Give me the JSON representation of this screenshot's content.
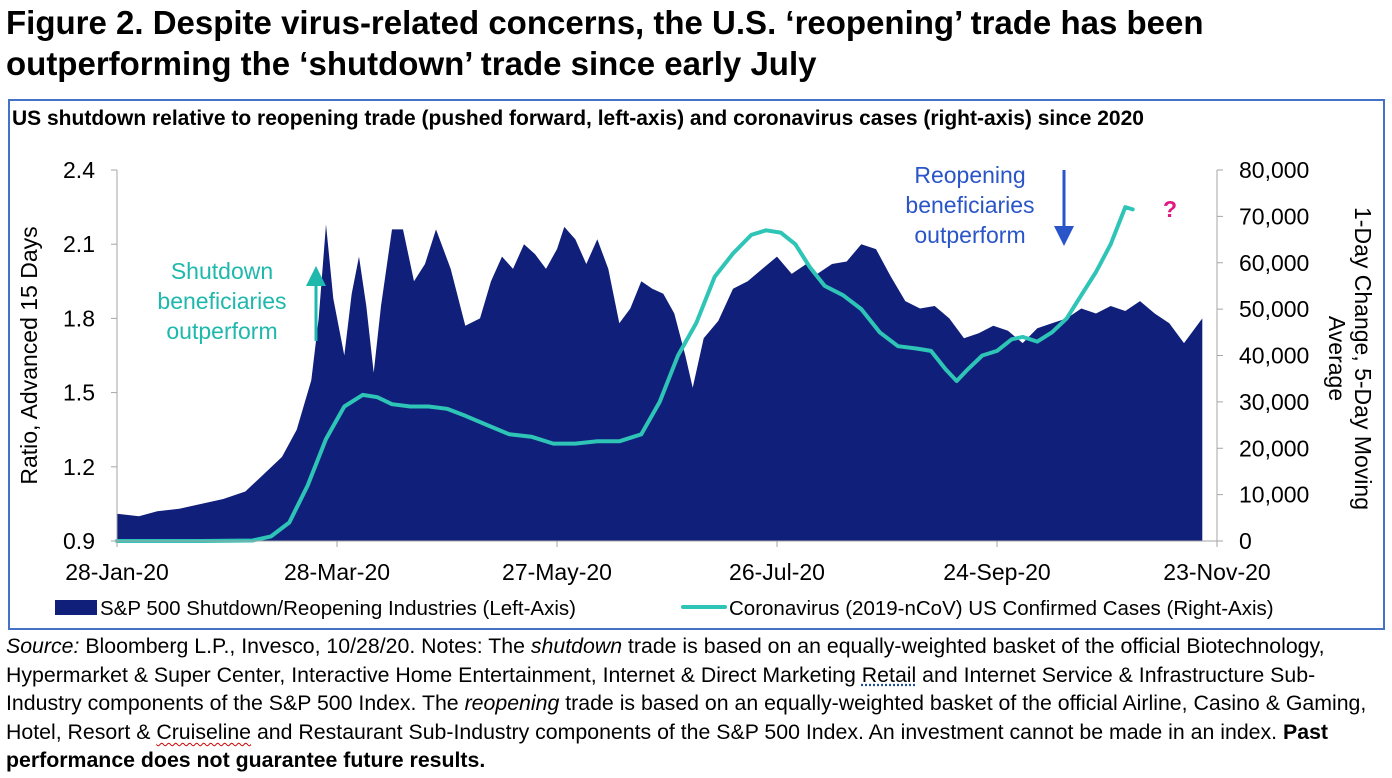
{
  "figure": {
    "title": "Figure 2. Despite virus-related concerns, the U.S. ‘reopening’ trade has been outperforming the ‘shutdown’ trade since early July"
  },
  "source_note": {
    "source_label": "Source:",
    "seg1": " Bloomberg L.P., Invesco, 10/28/20. Notes: The ",
    "shutdown_word": "shutdown",
    "seg2": " trade is based on an equally-weighted basket of the official Biotechnology, Hypermarket & Super Center, Interactive Home Entertainment, Internet & Direct Marketing ",
    "retail_word": "Retail",
    "seg3": " and Internet Service & Infrastructure Sub-Industry components of the S&P 500 Index. The ",
    "reopening_word": "reopening",
    "seg4": " trade is based on an equally-weighted basket of the official Airline, Casino & Gaming, Hotel, Resort & ",
    "cruiseline_word": "Cruiseline",
    "seg5": " and Restaurant Sub-Industry components of the S&P 500 Index. An investment cannot be made in an index. ",
    "disclaimer": "Past performance does not guarantee future results."
  },
  "colors": {
    "area": "#0f1f7a",
    "line": "#2ec4b6",
    "frame": "#4472c4",
    "reopen_text": "#2a55c8",
    "reopen_arrow": "#2a55c8",
    "shutdown_text": "#1fb8ad",
    "question": "#e0187f",
    "axis": "#a6a6a6"
  },
  "chart_data": {
    "type": "area",
    "title": "US shutdown relative to reopening trade (pushed forward, left-axis) and coronavirus cases (right-axis) since 2020",
    "ylabel_left": "Ratio, Advanced 15 Days",
    "ylabel_right": "1-Day Change, 5-Day Moving Average",
    "x_range": [
      "2020-01-28",
      "2020-11-23"
    ],
    "x_ticks": [
      "28-Jan-20",
      "28-Mar-20",
      "27-May-20",
      "26-Jul-20",
      "24-Sep-20",
      "23-Nov-20"
    ],
    "y_left": {
      "range": [
        0.9,
        2.4
      ],
      "ticks": [
        "0.9",
        "1.2",
        "1.5",
        "1.8",
        "2.1",
        "2.4"
      ]
    },
    "y_right": {
      "range": [
        0,
        80000
      ],
      "ticks": [
        "0",
        "10,000",
        "20,000",
        "30,000",
        "40,000",
        "50,000",
        "60,000",
        "70,000",
        "80,000"
      ]
    },
    "legend": {
      "placement": "bottom"
    },
    "grid": false,
    "series": [
      {
        "name": "S&P 500 Shutdown/Reopening Industries (Left-Axis)",
        "type": "area",
        "axis": "left",
        "points": [
          [
            "2020-01-28",
            1.01
          ],
          [
            "2020-02-03",
            1.0
          ],
          [
            "2020-02-08",
            1.02
          ],
          [
            "2020-02-14",
            1.03
          ],
          [
            "2020-02-20",
            1.05
          ],
          [
            "2020-02-26",
            1.07
          ],
          [
            "2020-03-03",
            1.1
          ],
          [
            "2020-03-08",
            1.17
          ],
          [
            "2020-03-13",
            1.24
          ],
          [
            "2020-03-17",
            1.35
          ],
          [
            "2020-03-21",
            1.55
          ],
          [
            "2020-03-23",
            1.8
          ],
          [
            "2020-03-25",
            2.18
          ],
          [
            "2020-03-27",
            1.88
          ],
          [
            "2020-03-30",
            1.65
          ],
          [
            "2020-04-01",
            1.9
          ],
          [
            "2020-04-03",
            2.05
          ],
          [
            "2020-04-05",
            1.85
          ],
          [
            "2020-04-07",
            1.58
          ],
          [
            "2020-04-09",
            1.85
          ],
          [
            "2020-04-12",
            2.16
          ],
          [
            "2020-04-15",
            2.16
          ],
          [
            "2020-04-18",
            1.95
          ],
          [
            "2020-04-21",
            2.02
          ],
          [
            "2020-04-24",
            2.16
          ],
          [
            "2020-04-28",
            2.0
          ],
          [
            "2020-05-02",
            1.77
          ],
          [
            "2020-05-06",
            1.8
          ],
          [
            "2020-05-09",
            1.95
          ],
          [
            "2020-05-12",
            2.05
          ],
          [
            "2020-05-15",
            2.0
          ],
          [
            "2020-05-18",
            2.1
          ],
          [
            "2020-05-21",
            2.06
          ],
          [
            "2020-05-24",
            2.0
          ],
          [
            "2020-05-27",
            2.08
          ],
          [
            "2020-05-29",
            2.17
          ],
          [
            "2020-06-01",
            2.12
          ],
          [
            "2020-06-04",
            2.02
          ],
          [
            "2020-06-07",
            2.12
          ],
          [
            "2020-06-10",
            2.0
          ],
          [
            "2020-06-13",
            1.78
          ],
          [
            "2020-06-16",
            1.84
          ],
          [
            "2020-06-19",
            1.95
          ],
          [
            "2020-06-22",
            1.92
          ],
          [
            "2020-06-25",
            1.9
          ],
          [
            "2020-06-28",
            1.82
          ],
          [
            "2020-07-01",
            1.65
          ],
          [
            "2020-07-03",
            1.52
          ],
          [
            "2020-07-06",
            1.72
          ],
          [
            "2020-07-10",
            1.79
          ],
          [
            "2020-07-14",
            1.92
          ],
          [
            "2020-07-18",
            1.95
          ],
          [
            "2020-07-22",
            2.0
          ],
          [
            "2020-07-26",
            2.05
          ],
          [
            "2020-07-30",
            1.98
          ],
          [
            "2020-08-03",
            2.02
          ],
          [
            "2020-08-06",
            1.98
          ],
          [
            "2020-08-10",
            2.02
          ],
          [
            "2020-08-14",
            2.03
          ],
          [
            "2020-08-18",
            2.1
          ],
          [
            "2020-08-22",
            2.08
          ],
          [
            "2020-08-26",
            1.97
          ],
          [
            "2020-08-30",
            1.87
          ],
          [
            "2020-09-03",
            1.84
          ],
          [
            "2020-09-07",
            1.85
          ],
          [
            "2020-09-11",
            1.8
          ],
          [
            "2020-09-15",
            1.72
          ],
          [
            "2020-09-19",
            1.74
          ],
          [
            "2020-09-23",
            1.77
          ],
          [
            "2020-09-27",
            1.75
          ],
          [
            "2020-10-01",
            1.7
          ],
          [
            "2020-10-05",
            1.76
          ],
          [
            "2020-10-09",
            1.78
          ],
          [
            "2020-10-13",
            1.8
          ],
          [
            "2020-10-17",
            1.84
          ],
          [
            "2020-10-21",
            1.82
          ],
          [
            "2020-10-25",
            1.85
          ],
          [
            "2020-10-29",
            1.83
          ],
          [
            "2020-11-02",
            1.87
          ],
          [
            "2020-11-06",
            1.82
          ],
          [
            "2020-11-10",
            1.78
          ],
          [
            "2020-11-14",
            1.7
          ],
          [
            "2020-11-19",
            1.8
          ]
        ]
      },
      {
        "name": "Coronavirus (2019-nCoV) US Confirmed Cases (Right-Axis)",
        "type": "line",
        "axis": "right",
        "points": [
          [
            "2020-01-28",
            0
          ],
          [
            "2020-02-20",
            0
          ],
          [
            "2020-03-05",
            100
          ],
          [
            "2020-03-10",
            1000
          ],
          [
            "2020-03-15",
            4000
          ],
          [
            "2020-03-20",
            12000
          ],
          [
            "2020-03-25",
            22000
          ],
          [
            "2020-03-30",
            29000
          ],
          [
            "2020-04-04",
            31500
          ],
          [
            "2020-04-08",
            31000
          ],
          [
            "2020-04-12",
            29500
          ],
          [
            "2020-04-17",
            29000
          ],
          [
            "2020-04-22",
            29000
          ],
          [
            "2020-04-27",
            28500
          ],
          [
            "2020-05-02",
            27000
          ],
          [
            "2020-05-08",
            25000
          ],
          [
            "2020-05-14",
            23000
          ],
          [
            "2020-05-20",
            22500
          ],
          [
            "2020-05-26",
            21000
          ],
          [
            "2020-06-01",
            21000
          ],
          [
            "2020-06-07",
            21500
          ],
          [
            "2020-06-13",
            21500
          ],
          [
            "2020-06-19",
            23000
          ],
          [
            "2020-06-24",
            30000
          ],
          [
            "2020-06-29",
            40000
          ],
          [
            "2020-07-04",
            47000
          ],
          [
            "2020-07-09",
            57000
          ],
          [
            "2020-07-14",
            62000
          ],
          [
            "2020-07-19",
            66000
          ],
          [
            "2020-07-23",
            67000
          ],
          [
            "2020-07-27",
            66500
          ],
          [
            "2020-07-31",
            64000
          ],
          [
            "2020-08-04",
            59000
          ],
          [
            "2020-08-08",
            55000
          ],
          [
            "2020-08-13",
            53000
          ],
          [
            "2020-08-18",
            50000
          ],
          [
            "2020-08-23",
            45000
          ],
          [
            "2020-08-28",
            42000
          ],
          [
            "2020-09-02",
            41500
          ],
          [
            "2020-09-06",
            41000
          ],
          [
            "2020-09-10",
            37000
          ],
          [
            "2020-09-13",
            34500
          ],
          [
            "2020-09-16",
            37000
          ],
          [
            "2020-09-20",
            40000
          ],
          [
            "2020-09-24",
            41000
          ],
          [
            "2020-09-28",
            43500
          ],
          [
            "2020-10-01",
            44000
          ],
          [
            "2020-10-05",
            43000
          ],
          [
            "2020-10-09",
            45000
          ],
          [
            "2020-10-13",
            48000
          ],
          [
            "2020-10-17",
            53000
          ],
          [
            "2020-10-21",
            58000
          ],
          [
            "2020-10-25",
            64000
          ],
          [
            "2020-10-29",
            72000
          ],
          [
            "2020-10-31",
            71500
          ]
        ]
      }
    ],
    "annotations": [
      {
        "id": "shutdown",
        "lines": [
          "Shutdown",
          "beneficiaries",
          "outperform"
        ],
        "arrow": "up"
      },
      {
        "id": "reopening",
        "lines": [
          "Reopening",
          "beneficiaries",
          "outperform"
        ],
        "arrow": "down"
      },
      {
        "id": "question",
        "text": "?"
      }
    ]
  }
}
